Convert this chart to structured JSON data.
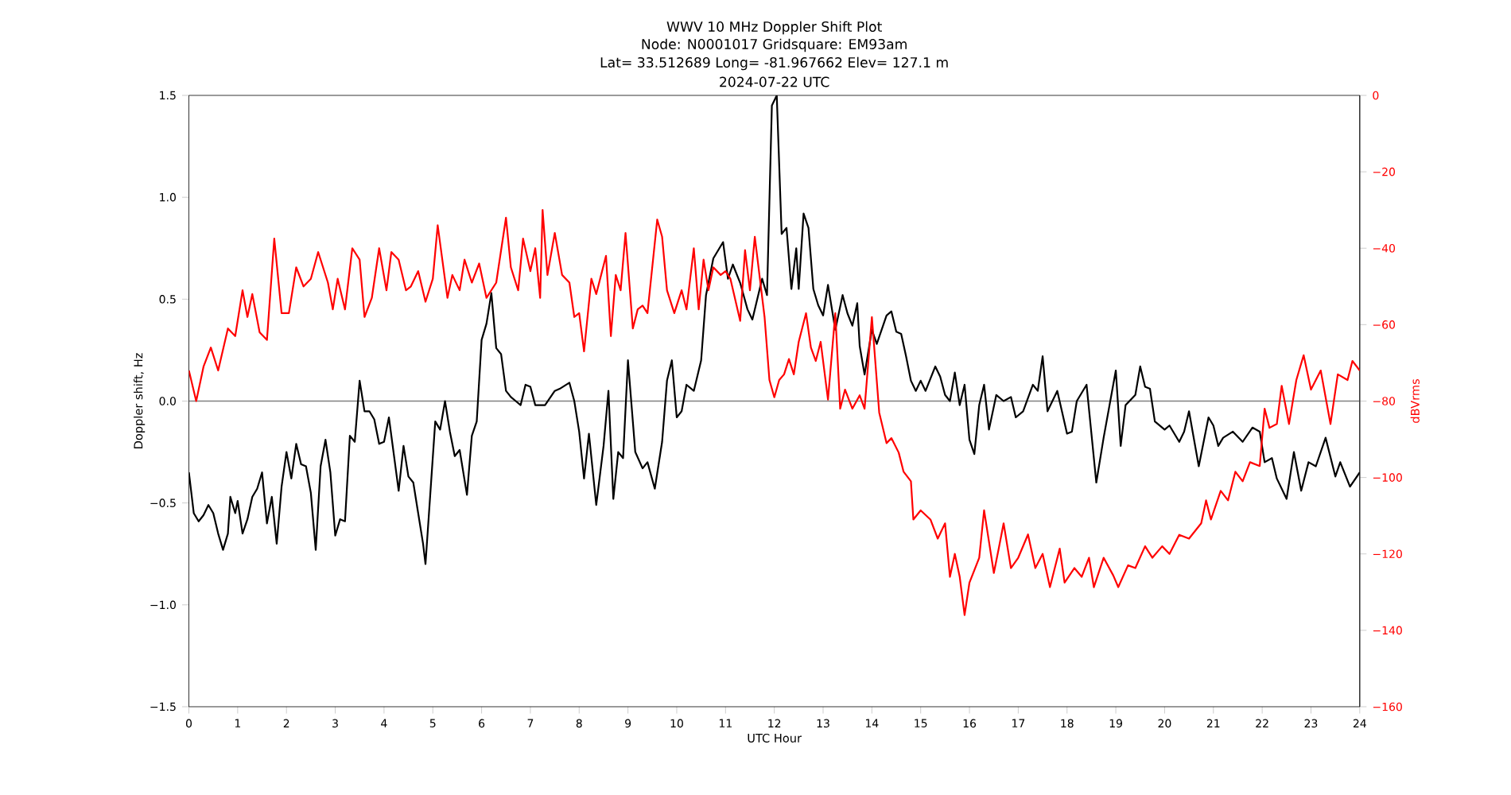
{
  "chart_data": {
    "type": "line",
    "title": "WWV 10 MHz Doppler Shift Plot",
    "subtitle": "Node:  N0001017     Gridsquare:  EM93am",
    "annotations": [
      "Lat= 33.512689    Long= -81.967662    Elev= 127.1 m",
      "2024-07-22  UTC"
    ],
    "xlabel": "UTC Hour",
    "ylabel": "Doppler shift, Hz",
    "y2label": "dBVrms",
    "xlim": [
      0,
      24
    ],
    "xticks": [
      0,
      1,
      2,
      3,
      4,
      5,
      6,
      7,
      8,
      9,
      10,
      11,
      12,
      13,
      14,
      15,
      16,
      17,
      18,
      19,
      20,
      21,
      22,
      23,
      24
    ],
    "ylim": [
      -1.5,
      1.5
    ],
    "yticks": [
      {
        "value": -1.5,
        "label": "−1.5"
      },
      {
        "value": -1.0,
        "label": "−1.0"
      },
      {
        "value": -0.5,
        "label": "−0.5"
      },
      {
        "value": 0,
        "label": "0.0"
      },
      {
        "value": 0.5,
        "label": "0.5"
      },
      {
        "value": 1.0,
        "label": "1.0"
      },
      {
        "value": 1.5,
        "label": "1.5"
      }
    ],
    "y2lim": [
      -160,
      0
    ],
    "y2ticks": [
      {
        "value": -160,
        "label": "−160"
      },
      {
        "value": -140,
        "label": "−140"
      },
      {
        "value": -120,
        "label": "−120"
      },
      {
        "value": -100,
        "label": "−100"
      },
      {
        "value": -80,
        "label": "−80"
      },
      {
        "value": -60,
        "label": "−60"
      },
      {
        "value": -40,
        "label": "−40"
      },
      {
        "value": -20,
        "label": "−20"
      },
      0
    ],
    "ref_lines": [
      {
        "axis": "y",
        "value": 0,
        "color": "#808080"
      }
    ],
    "series": [
      {
        "color": "#000000",
        "axis": "y",
        "x": [
          0,
          0.1,
          0.2,
          0.3,
          0.4,
          0.5,
          0.6,
          0.7,
          0.8,
          0.85,
          0.95,
          1.0,
          1.1,
          1.2,
          1.3,
          1.4,
          1.5,
          1.6,
          1.7,
          1.8,
          1.9,
          2.0,
          2.1,
          2.2,
          2.3,
          2.4,
          2.5,
          2.6,
          2.7,
          2.8,
          2.9,
          3.0,
          3.1,
          3.2,
          3.3,
          3.4,
          3.5,
          3.6,
          3.7,
          3.8,
          3.9,
          4.0,
          4.1,
          4.3,
          4.4,
          4.5,
          4.6,
          4.7,
          4.8,
          4.85,
          4.95,
          5.05,
          5.15,
          5.25,
          5.35,
          5.45,
          5.55,
          5.7,
          5.8,
          5.9,
          6.0,
          6.1,
          6.2,
          6.3,
          6.4,
          6.5,
          6.6,
          6.7,
          6.8,
          6.9,
          7.0,
          7.1,
          7.3,
          7.5,
          7.6,
          7.8,
          7.9,
          8.0,
          8.1,
          8.2,
          8.35,
          8.5,
          8.6,
          8.7,
          8.8,
          8.9,
          9.0,
          9.15,
          9.3,
          9.4,
          9.55,
          9.7,
          9.8,
          9.9,
          10.0,
          10.1,
          10.2,
          10.35,
          10.5,
          10.6,
          10.75,
          10.95,
          11.05,
          11.15,
          11.3,
          11.45,
          11.55,
          11.75,
          11.85,
          11.95,
          12.05,
          12.15,
          12.25,
          12.35,
          12.45,
          12.5,
          12.6,
          12.7,
          12.8,
          12.9,
          13.0,
          13.1,
          13.25,
          13.4,
          13.5,
          13.6,
          13.7,
          13.75,
          13.85,
          14.0,
          14.1,
          14.3,
          14.4,
          14.5,
          14.6,
          14.7,
          14.8,
          14.9,
          15.0,
          15.1,
          15.3,
          15.4,
          15.5,
          15.6,
          15.7,
          15.8,
          15.9,
          16.0,
          16.1,
          16.2,
          16.3,
          16.4,
          16.55,
          16.7,
          16.85,
          16.95,
          17.1,
          17.3,
          17.4,
          17.5,
          17.6,
          17.7,
          17.8,
          18.0,
          18.1,
          18.2,
          18.4,
          18.6,
          18.75,
          19.0,
          19.1,
          19.2,
          19.4,
          19.5,
          19.6,
          19.7,
          19.8,
          20.0,
          20.1,
          20.3,
          20.4,
          20.5,
          20.7,
          20.9,
          21.0,
          21.1,
          21.2,
          21.4,
          21.6,
          21.8,
          21.95,
          22.05,
          22.2,
          22.3,
          22.5,
          22.65,
          22.8,
          22.95,
          23.1,
          23.3,
          23.5,
          23.6,
          23.8,
          24.0
        ],
        "values": [
          -0.35,
          -0.55,
          -0.59,
          -0.56,
          -0.51,
          -0.55,
          -0.65,
          -0.73,
          -0.65,
          -0.47,
          -0.55,
          -0.49,
          -0.65,
          -0.58,
          -0.47,
          -0.43,
          -0.35,
          -0.6,
          -0.47,
          -0.7,
          -0.42,
          -0.25,
          -0.38,
          -0.21,
          -0.31,
          -0.32,
          -0.45,
          -0.73,
          -0.32,
          -0.19,
          -0.35,
          -0.66,
          -0.58,
          -0.59,
          -0.17,
          -0.2,
          0.1,
          -0.05,
          -0.05,
          -0.09,
          -0.21,
          -0.2,
          -0.08,
          -0.44,
          -0.22,
          -0.37,
          -0.4,
          -0.55,
          -0.7,
          -0.8,
          -0.45,
          -0.1,
          -0.14,
          0.0,
          -0.15,
          -0.27,
          -0.24,
          -0.46,
          -0.17,
          -0.1,
          0.3,
          0.38,
          0.53,
          0.26,
          0.23,
          0.05,
          0.02,
          0.0,
          -0.02,
          0.08,
          0.07,
          -0.02,
          -0.02,
          0.05,
          0.06,
          0.09,
          0.0,
          -0.15,
          -0.38,
          -0.16,
          -0.51,
          -0.22,
          0.05,
          -0.48,
          -0.25,
          -0.28,
          0.2,
          -0.25,
          -0.33,
          -0.3,
          -0.43,
          -0.2,
          0.1,
          0.2,
          -0.08,
          -0.05,
          0.08,
          0.05,
          0.2,
          0.52,
          0.7,
          0.78,
          0.6,
          0.67,
          0.58,
          0.45,
          0.4,
          0.6,
          0.52,
          1.45,
          1.5,
          0.82,
          0.85,
          0.55,
          0.75,
          0.55,
          0.92,
          0.85,
          0.55,
          0.47,
          0.42,
          0.57,
          0.35,
          0.52,
          0.43,
          0.37,
          0.48,
          0.27,
          0.13,
          0.35,
          0.28,
          0.42,
          0.44,
          0.34,
          0.33,
          0.22,
          0.1,
          0.05,
          0.1,
          0.05,
          0.17,
          0.12,
          0.03,
          0.0,
          0.14,
          -0.02,
          0.08,
          -0.19,
          -0.26,
          -0.02,
          0.08,
          -0.14,
          0.03,
          0.0,
          0.02,
          -0.08,
          -0.05,
          0.08,
          0.05,
          0.22,
          -0.05,
          0.0,
          0.05,
          -0.16,
          -0.15,
          0.0,
          0.08,
          -0.4,
          -0.18,
          0.15,
          -0.22,
          -0.02,
          0.03,
          0.17,
          0.07,
          0.06,
          -0.1,
          -0.14,
          -0.12,
          -0.2,
          -0.15,
          -0.05,
          -0.32,
          -0.08,
          -0.12,
          -0.22,
          -0.18,
          -0.15,
          -0.2,
          -0.13,
          -0.15,
          -0.3,
          -0.28,
          -0.38,
          -0.48,
          -0.25,
          -0.44,
          -0.3,
          -0.32,
          -0.18,
          -0.37,
          -0.3,
          -0.42,
          -0.35
        ]
      },
      {
        "color": "#ff0000",
        "axis": "y2",
        "x": [
          0,
          0.15,
          0.3,
          0.45,
          0.6,
          0.8,
          0.95,
          1.1,
          1.2,
          1.3,
          1.45,
          1.6,
          1.75,
          1.9,
          2.05,
          2.2,
          2.35,
          2.5,
          2.65,
          2.85,
          2.95,
          3.05,
          3.2,
          3.35,
          3.5,
          3.6,
          3.75,
          3.9,
          4.05,
          4.15,
          4.3,
          4.45,
          4.55,
          4.7,
          4.85,
          5.0,
          5.1,
          5.3,
          5.4,
          5.55,
          5.65,
          5.8,
          5.95,
          6.1,
          6.3,
          6.5,
          6.6,
          6.75,
          6.85,
          7.0,
          7.1,
          7.2,
          7.25,
          7.35,
          7.5,
          7.65,
          7.8,
          7.9,
          8.0,
          8.1,
          8.25,
          8.35,
          8.45,
          8.55,
          8.65,
          8.75,
          8.85,
          8.95,
          9.1,
          9.2,
          9.3,
          9.4,
          9.6,
          9.7,
          9.8,
          9.95,
          10.1,
          10.2,
          10.35,
          10.45,
          10.55,
          10.65,
          10.75,
          10.9,
          11.0,
          11.1,
          11.3,
          11.4,
          11.5,
          11.6,
          11.8,
          11.9,
          12.0,
          12.1,
          12.2,
          12.3,
          12.4,
          12.5,
          12.65,
          12.75,
          12.85,
          12.95,
          13.1,
          13.25,
          13.35,
          13.45,
          13.6,
          13.75,
          13.85,
          14.0,
          14.15,
          14.3,
          14.4,
          14.55,
          14.65,
          14.8,
          14.85,
          15.0,
          15.2,
          15.35,
          15.5,
          15.6,
          15.7,
          15.8,
          15.9,
          16.0,
          16.2,
          16.3,
          16.5,
          16.6,
          16.7,
          16.85,
          17.0,
          17.2,
          17.35,
          17.5,
          17.65,
          17.85,
          17.95,
          18.15,
          18.3,
          18.45,
          18.55,
          18.75,
          18.95,
          19.05,
          19.25,
          19.4,
          19.6,
          19.75,
          19.95,
          20.1,
          20.3,
          20.5,
          20.75,
          20.85,
          20.95,
          21.15,
          21.3,
          21.45,
          21.6,
          21.75,
          21.95,
          22.05,
          22.15,
          22.3,
          22.4,
          22.55,
          22.7,
          22.85,
          23.0,
          23.2,
          23.4,
          23.55,
          23.75,
          23.85,
          24.0
        ],
        "values": [
          -72,
          -80,
          -71,
          -66,
          -72,
          -61,
          -63,
          -51,
          -58,
          -52,
          -62,
          -64,
          -37.5,
          -57,
          -57,
          -45,
          -50,
          -48,
          -41,
          -49,
          -56,
          -48,
          -56,
          -40,
          -43,
          -58,
          -53,
          -40,
          -51,
          -41,
          -43,
          -51,
          -50,
          -46,
          -54,
          -48,
          -34,
          -53,
          -47,
          -51,
          -43,
          -49,
          -44,
          -53,
          -49,
          -32,
          -45,
          -51,
          -37.5,
          -46,
          -40,
          -53,
          -30,
          -47,
          -36,
          -47,
          -49,
          -58,
          -57,
          -67,
          -48,
          -52,
          -47,
          -42,
          -63,
          -47,
          -51,
          -36,
          -61,
          -56,
          -55,
          -57,
          -32.5,
          -37,
          -51,
          -57,
          -51,
          -56,
          -40,
          -56,
          -43,
          -51,
          -45,
          -47,
          -46,
          -48,
          -59,
          -40.5,
          -51,
          -37,
          -58,
          -74.5,
          -79,
          -74.5,
          -73,
          -69,
          -73,
          -64.5,
          -57,
          -66,
          -69.5,
          -64.5,
          -79.6,
          -57,
          -82,
          -77,
          -82,
          -78.5,
          -82,
          -58,
          -83,
          -91,
          -89.7,
          -93.5,
          -98.5,
          -101,
          -111,
          -108.6,
          -111,
          -116,
          -112,
          -126,
          -120,
          -126,
          -136,
          -127.5,
          -121,
          -108.6,
          -125,
          -118.6,
          -112,
          -123.7,
          -121,
          -114.9,
          -123.7,
          -120,
          -128.7,
          -118.6,
          -127.5,
          -123.7,
          -126,
          -121,
          -128.7,
          -121,
          -125.7,
          -128.7,
          -123,
          -123.7,
          -118,
          -121,
          -118,
          -120,
          -115,
          -116,
          -112,
          -106,
          -111,
          -103.5,
          -106,
          -98.5,
          -101,
          -96,
          -97,
          -82,
          -87,
          -86,
          -76,
          -86,
          -74.5,
          -68,
          -77,
          -72,
          -86,
          -73,
          -74.5,
          -69.5,
          -72
        ]
      }
    ]
  }
}
